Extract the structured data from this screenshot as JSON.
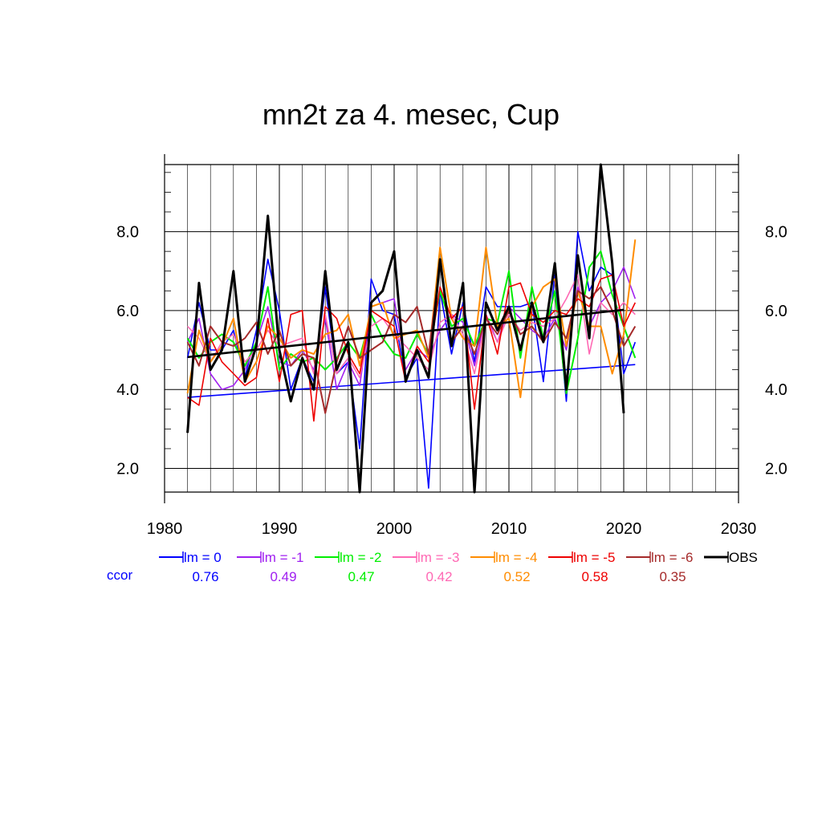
{
  "chart_data": {
    "type": "line",
    "title": "mn2t za 4. mesec, Cup",
    "xlabel": "",
    "ylabel": "",
    "xlim": [
      1980,
      2030
    ],
    "ylim": [
      1.4,
      9.7
    ],
    "x_ticks": [
      1980,
      1990,
      2000,
      2010,
      2020,
      2030
    ],
    "x_tick_labels": [
      "1980",
      "1990",
      "2000",
      "2010",
      "2020",
      "2030"
    ],
    "y_ticks": [
      2.0,
      4.0,
      6.0,
      8.0
    ],
    "y_tick_labels": [
      "2.0",
      "4.0",
      "6.0",
      "8.0"
    ],
    "grid": true,
    "legend_position": "bottom",
    "ccor_label": "ccor",
    "ccor_color": "#0000ff",
    "series": [
      {
        "name": "lm = 0",
        "color": "#0000ff",
        "width": 1.6,
        "ccor": "0.76",
        "x": [
          1982,
          1983,
          1984,
          1985,
          1986,
          1987,
          1988,
          1989,
          1990,
          1991,
          1992,
          1993,
          1994,
          1995,
          1996,
          1997,
          1998,
          1999,
          2000,
          2001,
          2002,
          2003,
          2004,
          2005,
          2006,
          2007,
          2008,
          2009,
          2010,
          2011,
          2012,
          2013,
          2014,
          2015,
          2016,
          2017,
          2018,
          2019,
          2020,
          2021
        ],
        "values": [
          4.8,
          6.2,
          5.0,
          5.0,
          5.5,
          4.3,
          5.5,
          7.3,
          6.0,
          4.0,
          4.8,
          4.2,
          6.6,
          4.4,
          4.7,
          2.5,
          6.8,
          6.0,
          5.9,
          4.3,
          4.8,
          1.5,
          6.5,
          4.9,
          6.2,
          4.7,
          6.6,
          6.1,
          6.1,
          6.1,
          6.2,
          4.2,
          6.9,
          3.7,
          8.0,
          6.5,
          7.1,
          6.9,
          4.4,
          5.2
        ],
        "trend": [
          [
            1982,
            3.8
          ],
          [
            2021,
            4.63
          ]
        ]
      },
      {
        "name": "lm = -1",
        "color": "#a020f0",
        "width": 1.6,
        "ccor": "0.49",
        "x": [
          1982,
          1983,
          1984,
          1985,
          1986,
          1987,
          1988,
          1989,
          1990,
          1991,
          1992,
          1993,
          1994,
          1995,
          1996,
          1997,
          1998,
          1999,
          2000,
          2001,
          2002,
          2003,
          2004,
          2005,
          2006,
          2007,
          2008,
          2009,
          2010,
          2011,
          2012,
          2013,
          2014,
          2015,
          2016,
          2017,
          2018,
          2019,
          2020,
          2021
        ],
        "values": [
          5.2,
          5.8,
          4.4,
          4.0,
          4.1,
          4.5,
          5.2,
          6.1,
          4.7,
          4.6,
          5.0,
          4.5,
          5.8,
          4.0,
          4.7,
          4.1,
          6.1,
          6.2,
          6.3,
          4.5,
          5.0,
          4.8,
          5.5,
          5.9,
          5.7,
          4.6,
          5.9,
          5.2,
          6.1,
          5.8,
          5.5,
          5.3,
          5.8,
          5.0,
          6.6,
          5.6,
          6.2,
          6.5,
          7.1,
          6.3
        ]
      },
      {
        "name": "lm = -2",
        "color": "#00ee00",
        "width": 2.0,
        "ccor": "0.47",
        "x": [
          1982,
          1983,
          1984,
          1985,
          1986,
          1987,
          1988,
          1989,
          1990,
          1991,
          1992,
          1993,
          1994,
          1995,
          1996,
          1997,
          1998,
          1999,
          2000,
          2001,
          2002,
          2003,
          2004,
          2005,
          2006,
          2007,
          2008,
          2009,
          2010,
          2011,
          2012,
          2013,
          2014,
          2015,
          2016,
          2017,
          2018,
          2019,
          2020,
          2021
        ],
        "values": [
          5.3,
          4.8,
          5.2,
          5.4,
          5.2,
          4.6,
          5.2,
          6.6,
          4.5,
          4.9,
          4.7,
          4.8,
          4.5,
          4.8,
          5.2,
          4.8,
          5.9,
          5.3,
          4.9,
          4.8,
          5.4,
          4.9,
          6.5,
          5.6,
          5.8,
          5.1,
          5.8,
          5.7,
          7.0,
          4.8,
          6.6,
          5.3,
          6.5,
          3.9,
          5.3,
          7.1,
          7.5,
          6.4,
          5.6,
          4.8
        ]
      },
      {
        "name": "lm = -3",
        "color": "#ff69b4",
        "width": 1.6,
        "ccor": "0.42",
        "x": [
          1982,
          1983,
          1984,
          1985,
          1986,
          1987,
          1988,
          1989,
          1990,
          1991,
          1992,
          1993,
          1994,
          1995,
          1996,
          1997,
          1998,
          1999,
          2000,
          2001,
          2002,
          2003,
          2004,
          2005,
          2006,
          2007,
          2008,
          2009,
          2010,
          2011,
          2012,
          2013,
          2014,
          2015,
          2016,
          2017,
          2018,
          2019,
          2020,
          2021
        ],
        "values": [
          5.6,
          5.3,
          4.7,
          5.2,
          5.4,
          4.7,
          5.0,
          5.5,
          5.1,
          5.2,
          5.3,
          4.4,
          5.9,
          4.4,
          4.8,
          4.3,
          5.6,
          5.8,
          5.4,
          5.1,
          4.8,
          4.5,
          5.7,
          5.9,
          5.4,
          4.4,
          5.8,
          5.2,
          5.9,
          5.5,
          5.7,
          5.6,
          5.8,
          6.3,
          6.9,
          4.9,
          6.2,
          5.9,
          6.2,
          5.9
        ]
      },
      {
        "name": "lm = -4",
        "color": "#ff8c00",
        "width": 2.0,
        "ccor": "0.52",
        "x": [
          1982,
          1983,
          1984,
          1985,
          1986,
          1987,
          1988,
          1989,
          1990,
          1991,
          1992,
          1993,
          1994,
          1995,
          1996,
          1997,
          1998,
          1999,
          2000,
          2001,
          2002,
          2003,
          2004,
          2005,
          2006,
          2007,
          2008,
          2009,
          2010,
          2011,
          2012,
          2013,
          2014,
          2015,
          2016,
          2017,
          2018,
          2019,
          2020,
          2021
        ],
        "values": [
          3.9,
          5.5,
          4.7,
          5.1,
          5.8,
          4.2,
          4.7,
          5.6,
          5.3,
          4.8,
          5.0,
          4.9,
          5.4,
          5.5,
          5.9,
          4.6,
          6.1,
          6.2,
          5.3,
          5.4,
          5.5,
          4.8,
          7.6,
          5.8,
          5.3,
          5.1,
          7.6,
          5.6,
          5.8,
          3.8,
          6.1,
          6.6,
          6.8,
          5.1,
          6.5,
          5.6,
          5.6,
          4.4,
          5.4,
          7.8
        ]
      },
      {
        "name": "lm = -5",
        "color": "#ee0000",
        "width": 1.6,
        "ccor": "0.58",
        "x": [
          1982,
          1983,
          1984,
          1985,
          1986,
          1987,
          1988,
          1989,
          1990,
          1991,
          1992,
          1993,
          1994,
          1995,
          1996,
          1997,
          1998,
          1999,
          2000,
          2001,
          2002,
          2003,
          2004,
          2005,
          2006,
          2007,
          2008,
          2009,
          2010,
          2011,
          2012,
          2013,
          2014,
          2015,
          2016,
          2017,
          2018,
          2019,
          2020,
          2021
        ],
        "values": [
          3.8,
          3.6,
          5.3,
          4.7,
          4.4,
          4.1,
          4.3,
          5.8,
          4.2,
          5.9,
          6.0,
          3.2,
          6.1,
          5.8,
          4.9,
          4.4,
          6.0,
          5.8,
          5.6,
          4.2,
          5.1,
          4.7,
          6.6,
          5.8,
          6.1,
          3.5,
          5.9,
          4.9,
          6.6,
          6.7,
          5.9,
          5.7,
          6.0,
          5.9,
          6.3,
          6.1,
          6.8,
          6.9,
          5.6,
          6.2
        ]
      },
      {
        "name": "lm = -6",
        "color": "#a52a2a",
        "width": 2.0,
        "ccor": "0.35",
        "x": [
          1982,
          1983,
          1984,
          1985,
          1986,
          1987,
          1988,
          1989,
          1990,
          1991,
          1992,
          1993,
          1994,
          1995,
          1996,
          1997,
          1998,
          1999,
          2000,
          2001,
          2002,
          2003,
          2004,
          2005,
          2006,
          2007,
          2008,
          2009,
          2010,
          2011,
          2012,
          2013,
          2014,
          2015,
          2016,
          2017,
          2018,
          2019,
          2020,
          2021
        ],
        "values": [
          5.2,
          4.6,
          5.6,
          5.2,
          5.1,
          5.3,
          5.7,
          4.9,
          5.5,
          4.6,
          4.9,
          4.8,
          3.4,
          4.7,
          5.6,
          4.8,
          5.0,
          5.2,
          5.9,
          5.7,
          6.1,
          4.9,
          7.2,
          5.2,
          5.6,
          4.9,
          5.8,
          5.4,
          6.0,
          5.4,
          5.6,
          5.2,
          5.7,
          5.3,
          6.5,
          6.3,
          6.6,
          6.0,
          5.1,
          5.6
        ]
      },
      {
        "name": "OBS",
        "color": "#000000",
        "width": 3.0,
        "x": [
          1982,
          1983,
          1984,
          1985,
          1986,
          1987,
          1988,
          1989,
          1990,
          1991,
          1992,
          1993,
          1994,
          1995,
          1996,
          1997,
          1998,
          1999,
          2000,
          2001,
          2002,
          2003,
          2004,
          2005,
          2006,
          2007,
          2008,
          2009,
          2010,
          2011,
          2012,
          2013,
          2014,
          2015,
          2016,
          2017,
          2018,
          2019,
          2020
        ],
        "values": [
          2.9,
          6.7,
          4.5,
          5.0,
          7.0,
          4.2,
          5.1,
          8.4,
          5.0,
          3.7,
          4.8,
          4.0,
          7.0,
          4.5,
          5.2,
          1.4,
          6.2,
          6.5,
          7.5,
          4.2,
          5.0,
          4.3,
          7.3,
          5.1,
          6.7,
          1.4,
          6.2,
          5.5,
          6.1,
          5.0,
          6.2,
          5.2,
          7.2,
          4.0,
          7.4,
          5.3,
          9.7,
          7.2,
          3.4
        ],
        "trend": [
          [
            1982,
            4.82
          ],
          [
            2020,
            6.02
          ]
        ]
      }
    ]
  }
}
